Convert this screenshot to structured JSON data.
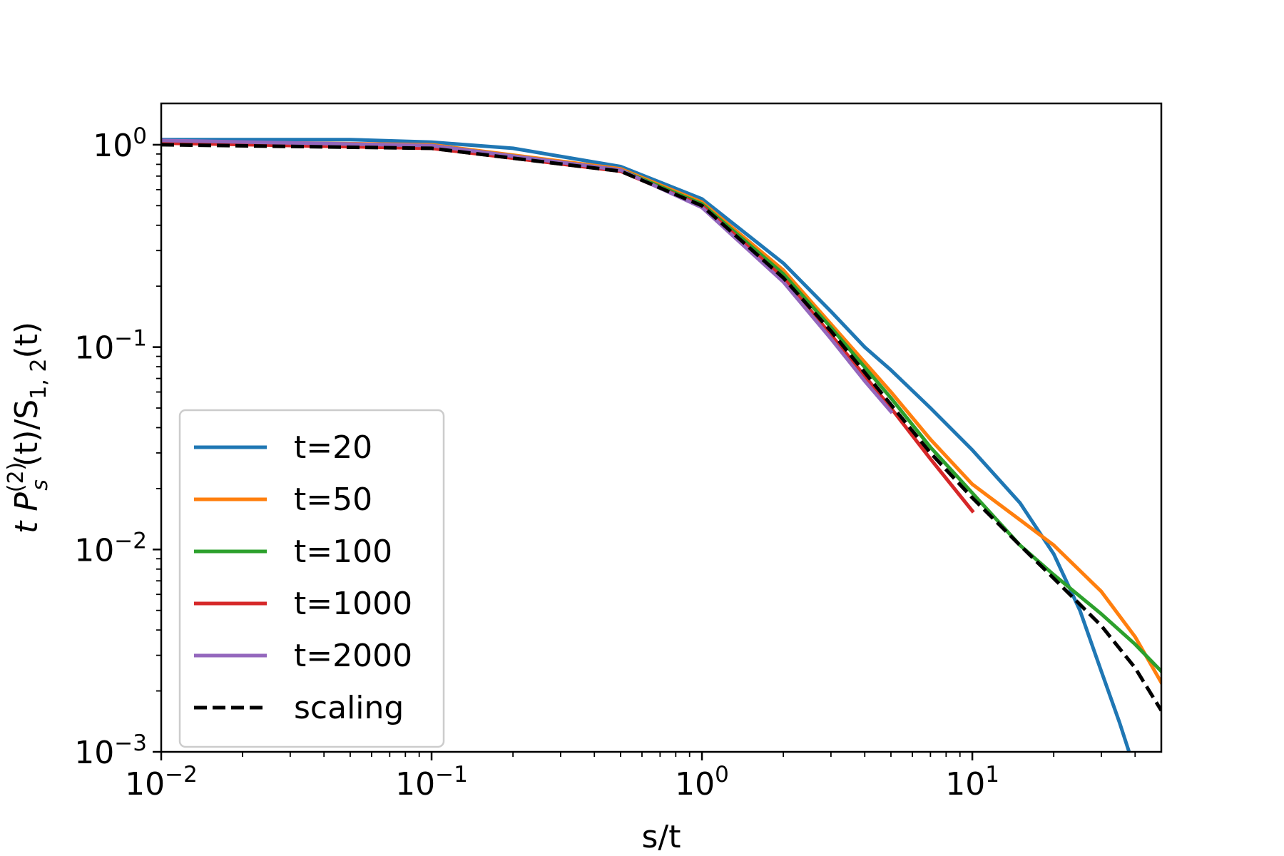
{
  "chart_data": {
    "type": "line",
    "xlabel": "s/t",
    "ylabel": {
      "prefix": "t P",
      "sup": "(2)",
      "sub": "s",
      "mid": "(t)/S",
      "sub2": "1, 2",
      "suffix": "(t)"
    },
    "xscale": "log",
    "yscale": "log",
    "xlim": [
      0.01,
      50
    ],
    "ylim": [
      0.001,
      1.6
    ],
    "grid": false,
    "legend_position": "lower-left",
    "x_ticks": [
      {
        "value": 0.01,
        "base": "10",
        "exp": "−2"
      },
      {
        "value": 0.1,
        "base": "10",
        "exp": "−1"
      },
      {
        "value": 1,
        "base": "10",
        "exp": "0"
      },
      {
        "value": 10,
        "base": "10",
        "exp": "1"
      }
    ],
    "y_ticks": [
      {
        "value": 1,
        "base": "10",
        "exp": "0"
      },
      {
        "value": 0.1,
        "base": "10",
        "exp": "−1"
      },
      {
        "value": 0.01,
        "base": "10",
        "exp": "−2"
      },
      {
        "value": 0.001,
        "base": "10",
        "exp": "−3"
      }
    ],
    "series": [
      {
        "name": "t=20",
        "color": "#1f77b4",
        "dash": false,
        "x": [
          0.01,
          0.05,
          0.1,
          0.2,
          0.5,
          1,
          2,
          3,
          4,
          5,
          7,
          10,
          15,
          20,
          25,
          30,
          35,
          38
        ],
        "y": [
          1.06,
          1.06,
          1.03,
          0.96,
          0.78,
          0.54,
          0.26,
          0.15,
          0.1,
          0.077,
          0.05,
          0.031,
          0.017,
          0.0095,
          0.005,
          0.0025,
          0.0014,
          0.001
        ]
      },
      {
        "name": "t=50",
        "color": "#ff7f0e",
        "dash": false,
        "x": [
          0.01,
          0.1,
          0.5,
          1,
          2,
          3,
          5,
          7,
          10,
          15,
          20,
          30,
          40,
          50
        ],
        "y": [
          1.04,
          1.0,
          0.76,
          0.52,
          0.24,
          0.13,
          0.06,
          0.035,
          0.021,
          0.014,
          0.0105,
          0.0062,
          0.0037,
          0.0022
        ]
      },
      {
        "name": "t=100",
        "color": "#2ca02c",
        "dash": false,
        "x": [
          0.01,
          0.1,
          0.5,
          1,
          2,
          3,
          5,
          7,
          10,
          15,
          20,
          30,
          40,
          50
        ],
        "y": [
          1.04,
          0.99,
          0.75,
          0.51,
          0.23,
          0.125,
          0.056,
          0.032,
          0.019,
          0.0105,
          0.0075,
          0.0048,
          0.0034,
          0.0025
        ]
      },
      {
        "name": "t=1000",
        "color": "#d62728",
        "dash": false,
        "x": [
          0.01,
          0.1,
          0.5,
          1,
          2,
          3,
          5,
          7,
          10
        ],
        "y": [
          1.02,
          0.96,
          0.74,
          0.5,
          0.22,
          0.115,
          0.05,
          0.028,
          0.0155
        ]
      },
      {
        "name": "t=2000",
        "color": "#9467bd",
        "dash": false,
        "x": [
          0.01,
          0.1,
          0.5,
          1,
          2,
          3,
          4,
          5
        ],
        "y": [
          1.05,
          0.99,
          0.75,
          0.49,
          0.21,
          0.11,
          0.068,
          0.048
        ]
      },
      {
        "name": "scaling",
        "color": "#000000",
        "dash": true,
        "x": [
          0.01,
          0.1,
          0.5,
          1,
          2,
          3,
          5,
          7,
          10,
          15,
          20,
          30,
          40,
          50
        ],
        "y": [
          1.0,
          0.96,
          0.74,
          0.5,
          0.22,
          0.12,
          0.052,
          0.03,
          0.018,
          0.0105,
          0.0072,
          0.0042,
          0.0026,
          0.0016
        ]
      }
    ]
  }
}
